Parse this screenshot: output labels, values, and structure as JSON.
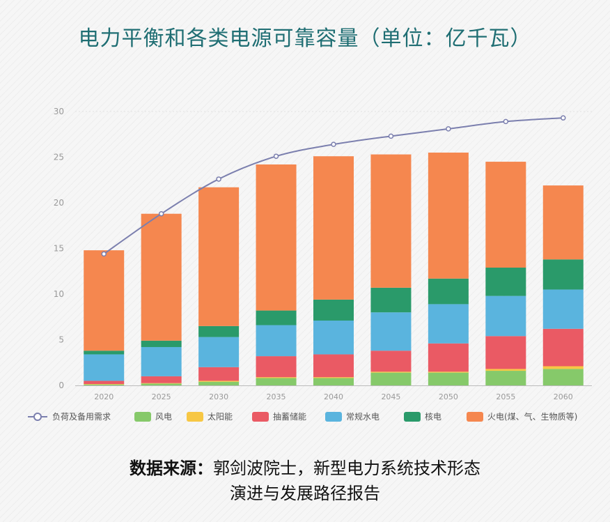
{
  "title": "电力平衡和各类电源可靠容量（单位：亿千瓦）",
  "source": {
    "label": "数据来源：",
    "line1": "郭剑波院士，新型电力系统技术形态",
    "line2": "演进与发展路径报告"
  },
  "chart_data": {
    "type": "bar",
    "stacked": true,
    "categories": [
      "2020",
      "2025",
      "2030",
      "2035",
      "2040",
      "2045",
      "2050",
      "2055",
      "2060"
    ],
    "ylim": [
      0,
      30
    ],
    "yticks": [
      0,
      5,
      10,
      15,
      20,
      25,
      30
    ],
    "grid": false,
    "series": [
      {
        "name": "风电",
        "color": "#86c96a",
        "values": [
          0.1,
          0.2,
          0.4,
          0.8,
          0.8,
          1.4,
          1.4,
          1.6,
          1.8
        ]
      },
      {
        "name": "太阳能",
        "color": "#f7c744",
        "values": [
          0.05,
          0.05,
          0.1,
          0.1,
          0.1,
          0.1,
          0.1,
          0.2,
          0.3
        ]
      },
      {
        "name": "抽蓄储能",
        "color": "#ea5a64",
        "values": [
          0.35,
          0.75,
          1.5,
          2.3,
          2.5,
          2.3,
          3.1,
          3.6,
          4.1
        ]
      },
      {
        "name": "常规水电",
        "color": "#5ab4de",
        "values": [
          2.9,
          3.2,
          3.3,
          3.4,
          3.7,
          4.2,
          4.3,
          4.4,
          4.3
        ]
      },
      {
        "name": "核电",
        "color": "#2a9a6a",
        "values": [
          0.4,
          0.7,
          1.2,
          1.6,
          2.3,
          2.7,
          2.8,
          3.1,
          3.3
        ]
      },
      {
        "name": "火电(煤、气、生物质等)",
        "color": "#f5874f",
        "values": [
          11.0,
          13.9,
          15.2,
          16.0,
          15.7,
          14.6,
          13.8,
          11.6,
          8.1
        ]
      }
    ],
    "line": {
      "name": "负荷及备用需求",
      "color": "#7b7fae",
      "values": [
        14.4,
        18.8,
        22.6,
        25.1,
        26.4,
        27.3,
        28.1,
        28.9,
        29.3
      ]
    },
    "legend_position": "bottom"
  }
}
